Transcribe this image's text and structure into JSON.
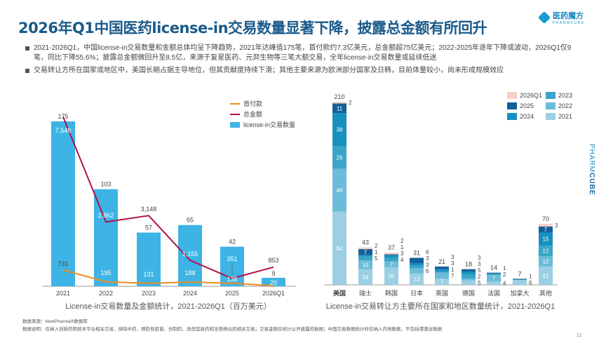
{
  "title": "2026年Q1中国医药license-in交易数量显著下降，披露总金额有所回升",
  "logo": {
    "name": "医药魔方",
    "sub": "PHARMCUBE"
  },
  "side_brand": {
    "a": "PHARM",
    "b": "CUBE"
  },
  "bullets": [
    "2021-2026Q1，中国license-in交易数量和金额总体均呈下降趋势，2021年达峰值175笔，首付款约7.3亿美元，总金额超75亿美元；2022-2025年逐年下降或波动，2026Q1仅9笔，同比下降55.6%；披露总金额微回升至8.5亿，来源于复星医药、元羿生物等三笔大额交易，全年license-in交易数量或延续低迷",
    "交易转让方所在国家或地区中，美国长期占据主导地位，但其贡献度持续下滑；其他主要来源为欧洲部分国家及日韩，目前体量较小，尚未形成规模效应"
  ],
  "footer": {
    "source": "数据来源：NextPharma®数据库",
    "note": "数据说明：仅纳入创新药和技术平台相关交易，排除中药、预防性疫苗、仿制药、改良型新药和生物类似药相关交易；交易金额仅统计公开披露的数据；中国交易数据统计时仅纳入内地数据，不包括港澳台数据",
    "page": "11"
  },
  "colors": {
    "bar": "#3db4e5",
    "total": "#b0134a",
    "upfront": "#f08c1e",
    "y2021": "#9ccfe3",
    "y2022": "#6bbcd8",
    "y2023": "#3aa5c8",
    "y2024": "#1690c0",
    "y2025": "#15609a",
    "y2026Q1": "#f6d0c8"
  },
  "chart_data": [
    {
      "type": "bar+line",
      "title": "License-in交易数量及金额统计，2021-2026Q1（百万美元）",
      "categories": [
        "2021",
        "2022",
        "2023",
        "2024",
        "2025",
        "2026Q1"
      ],
      "series": [
        {
          "name": "license-in交易数量",
          "type": "bar",
          "values": [
            175,
            103,
            57,
            65,
            42,
            9
          ]
        },
        {
          "name": "总金额",
          "type": "line",
          "values": [
            7548,
            2862,
            3148,
            1155,
            351,
            853
          ]
        },
        {
          "name": "首付款",
          "type": "line",
          "values": [
            731,
            195,
            131,
            188,
            138,
            20
          ]
        }
      ],
      "value_labels": {
        "total": [
          "7,548",
          "2,862",
          "3,148",
          "1,155",
          "351",
          "853"
        ],
        "upfront": [
          "731",
          "195",
          "131",
          "188",
          "138",
          "20"
        ]
      },
      "legend": [
        "首付款",
        "总金额",
        "license-in交易数量"
      ],
      "legend_position": "top-right"
    },
    {
      "type": "stacked-bar",
      "title": "License-in交易转让方主要所在国家和地区数量统计，2021-2026Q1",
      "categories": [
        "美国",
        "瑞士",
        "韩国",
        "日本",
        "英国",
        "德国",
        "法国",
        "加拿大",
        "其他"
      ],
      "totals": [
        210,
        43,
        37,
        31,
        21,
        18,
        14,
        7,
        70
      ],
      "series": [
        {
          "name": "2021",
          "values": [
            84,
            18,
            20,
            13,
            7,
            5,
            4,
            6,
            21
          ]
        },
        {
          "name": "2022",
          "values": [
            49,
            10,
            7,
            6,
            7,
            2,
            7,
            0,
            12
          ]
        },
        {
          "name": "2023",
          "values": [
            26,
            5,
            4,
            3,
            1,
            5,
            2,
            0,
            12
          ]
        },
        {
          "name": "2024",
          "values": [
            38,
            1,
            3,
            3,
            3,
            3,
            0,
            0,
            15
          ]
        },
        {
          "name": "2025",
          "values": [
            11,
            7,
            1,
            6,
            3,
            3,
            1,
            1,
            7
          ]
        },
        {
          "name": "2026Q1",
          "values": [
            2,
            2,
            2,
            0,
            0,
            0,
            0,
            0,
            3
          ]
        }
      ],
      "legend": [
        "2026Q1",
        "2023",
        "2025",
        "2022",
        "2024",
        "2021"
      ],
      "legend_position": "top-right"
    }
  ]
}
